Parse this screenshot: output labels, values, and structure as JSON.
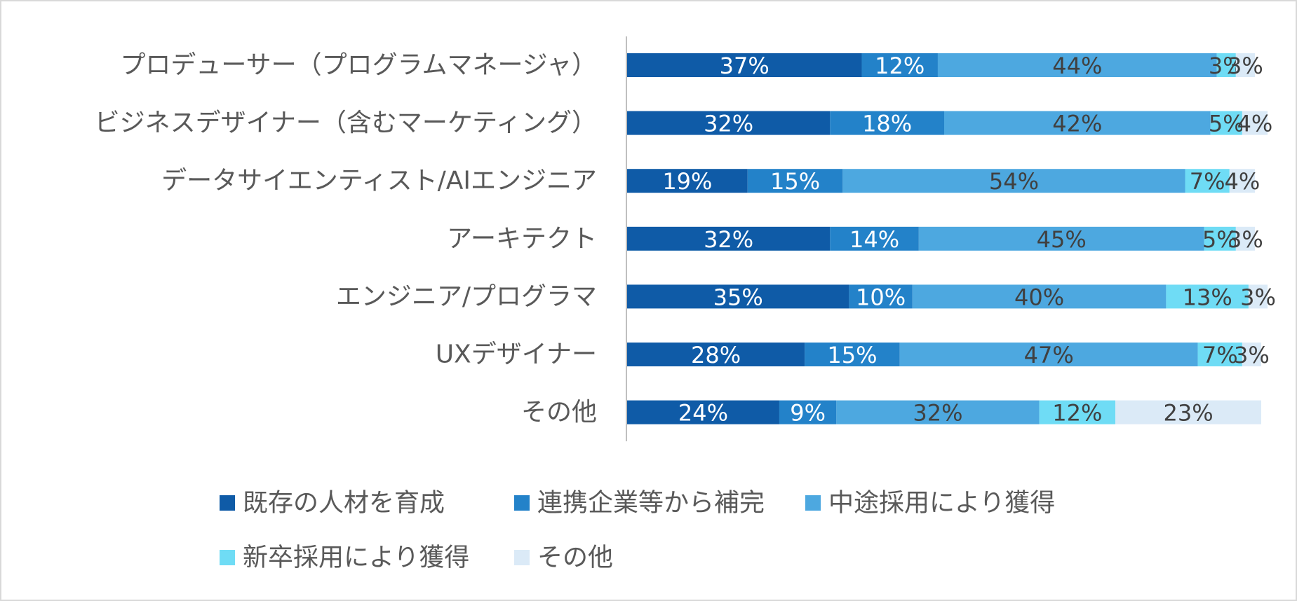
{
  "chart_data": {
    "type": "bar",
    "orientation": "horizontal",
    "stacked": "percent",
    "title": "",
    "xlabel": "",
    "ylabel": "",
    "xlim": [
      0,
      100
    ],
    "grid": false,
    "legend_position": "bottom",
    "categories": [
      "プロデューサー（プログラムマネージャ）",
      "ビジネスデザイナー（含むマーケティング）",
      "データサイエンティスト/AIエンジニア",
      "アーキテクト",
      "エンジニア/プログラマ",
      "UXデザイナー",
      "その他"
    ],
    "series": [
      {
        "name": "既存の人材を育成",
        "color": "#0f5ba7",
        "label_color": "#ffffff",
        "values": [
          37,
          32,
          19,
          32,
          35,
          28,
          24
        ]
      },
      {
        "name": "連携企業等から補完",
        "color": "#2382c9",
        "label_color": "#ffffff",
        "values": [
          12,
          18,
          15,
          14,
          10,
          15,
          9
        ]
      },
      {
        "name": "中途採用により獲得",
        "color": "#4da8e0",
        "label_color": "#404040",
        "values": [
          44,
          42,
          54,
          45,
          40,
          47,
          32
        ]
      },
      {
        "name": "新卒採用により獲得",
        "color": "#6fdcf5",
        "label_color": "#404040",
        "values": [
          3,
          5,
          7,
          5,
          13,
          7,
          12
        ]
      },
      {
        "name": "その他",
        "color": "#dbeaf7",
        "label_color": "#404040",
        "values": [
          3,
          4,
          4,
          3,
          3,
          3,
          23
        ]
      }
    ],
    "value_suffix": "%"
  }
}
